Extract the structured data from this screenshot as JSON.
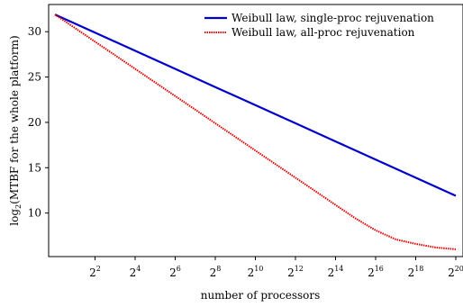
{
  "chart_data": {
    "type": "line",
    "xlabel": "number of processors",
    "ylabel": "log",
    "ylabel_sub": "2",
    "ylabel_rest": "(MTBF for the whole platform)",
    "x_tick_base": "2",
    "x_ticks": [
      2,
      4,
      6,
      8,
      10,
      12,
      14,
      16,
      18,
      20
    ],
    "xlim": [
      0,
      20
    ],
    "y_ticks": [
      10,
      15,
      20,
      25,
      30
    ],
    "ylim": [
      5.2,
      33
    ],
    "legend_placement": "top-right",
    "series": [
      {
        "name": "Weibull law, single-proc rejuvenation",
        "color": "#0000cc",
        "style": "solid",
        "x": [
          0,
          2,
          4,
          6,
          8,
          10,
          12,
          14,
          16,
          18,
          20
        ],
        "y": [
          31.9,
          29.9,
          27.9,
          25.9,
          23.9,
          21.9,
          19.9,
          17.9,
          15.9,
          13.9,
          11.9
        ]
      },
      {
        "name": "Weibull law, all-proc rejuvenation",
        "color": "#e60000",
        "style": "dotted",
        "x": [
          0,
          1,
          2,
          3,
          4,
          5,
          6,
          7,
          8,
          9,
          10,
          11,
          12,
          13,
          14,
          15,
          16,
          17,
          18,
          19,
          20
        ],
        "y": [
          31.9,
          30.4,
          28.9,
          27.4,
          25.9,
          24.4,
          22.9,
          21.4,
          19.9,
          18.4,
          16.9,
          15.4,
          13.9,
          12.4,
          10.9,
          9.4,
          8.1,
          7.1,
          6.6,
          6.2,
          6.0
        ]
      }
    ]
  }
}
